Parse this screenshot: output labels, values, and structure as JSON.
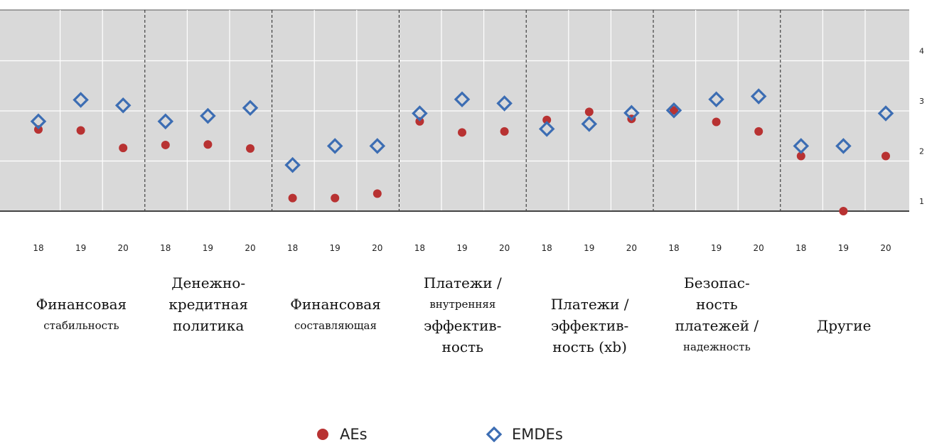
{
  "chart_data": {
    "type": "scatter",
    "ylim": [
      1,
      4
    ],
    "y_ticks": [
      "1",
      "2",
      "3",
      "4"
    ],
    "grid": true,
    "legend_position": "bottom-center",
    "colors": {
      "AEs": "#b83232",
      "EMDEs": "#3c6db3",
      "background": "#d9d9d9"
    },
    "x_ticks": [
      "18",
      "19",
      "20",
      "18",
      "19",
      "20",
      "18",
      "19",
      "20",
      "18",
      "19",
      "20",
      "18",
      "19",
      "20",
      "18",
      "19",
      "20",
      "18",
      "19",
      "20"
    ],
    "groups": [
      {
        "label_lines": [
          "",
          "Финансовая",
          "стабильность"
        ]
      },
      {
        "label_lines": [
          "Денежно-",
          "кредитная",
          "политика"
        ]
      },
      {
        "label_lines": [
          "",
          "Финансовая",
          "составляющая"
        ]
      },
      {
        "label_lines": [
          "Платежи /",
          "внутренняя",
          "эффектив-",
          "ность"
        ]
      },
      {
        "label_lines": [
          "",
          "Платежи /",
          "эффектив-",
          "ность (xb)"
        ]
      },
      {
        "label_lines": [
          "Безопас-",
          "ность",
          "платежей /",
          "надежность"
        ]
      },
      {
        "label_lines": [
          "",
          "",
          "Другие"
        ]
      }
    ],
    "series": [
      {
        "name": "AEs",
        "marker": "circle",
        "values": [
          2.63,
          2.61,
          2.26,
          2.32,
          2.33,
          2.25,
          1.26,
          1.26,
          1.35,
          2.79,
          2.57,
          2.59,
          2.82,
          2.98,
          2.84,
          3.01,
          2.78,
          2.59,
          2.1,
          1.0,
          2.1
        ]
      },
      {
        "name": "EMDEs",
        "marker": "diamond",
        "values": [
          2.79,
          3.22,
          3.11,
          2.79,
          2.9,
          3.06,
          1.92,
          2.3,
          2.3,
          2.95,
          3.23,
          3.15,
          2.64,
          2.74,
          2.96,
          3.01,
          3.23,
          3.29,
          2.3,
          2.3,
          2.95
        ]
      }
    ]
  }
}
